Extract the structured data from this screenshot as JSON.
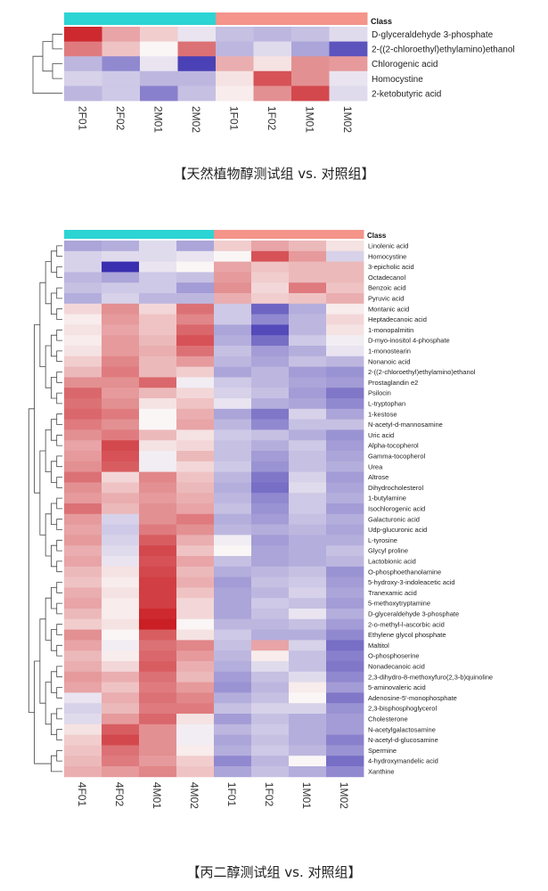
{
  "colors": {
    "class_treatment": "#2DD4D4",
    "class_control": "#F4948A",
    "low": "#3A2FB0",
    "mid": "#FAF6F6",
    "high": "#C8151B"
  },
  "chart_data": [
    {
      "type": "heatmap",
      "class_label": "Class",
      "columns": [
        "2F01",
        "2F02",
        "2M01",
        "2M02",
        "1F01",
        "1F02",
        "1M01",
        "1M02"
      ],
      "rows": [
        "D-glyceraldehyde 3-phosphate",
        "2-((2-chloroethyl)ethylamino)ethanol",
        "Chlorogenic acid",
        "Homocystine",
        "2-ketobutyric acid"
      ],
      "values": [
        [
          2.0,
          0.8,
          0.4,
          -0.2,
          -0.6,
          -0.7,
          -0.6,
          -0.3
        ],
        [
          1.2,
          0.5,
          0.0,
          1.3,
          -0.7,
          -0.3,
          -0.9,
          -1.8
        ],
        [
          -0.7,
          -1.2,
          -0.2,
          -2.0,
          0.7,
          0.2,
          1.0,
          0.9
        ],
        [
          -0.4,
          -0.5,
          -0.7,
          -0.7,
          0.2,
          1.6,
          1.0,
          -0.2
        ],
        [
          -0.7,
          -0.5,
          -1.3,
          -0.6,
          0.1,
          1.0,
          1.7,
          -0.3
        ]
      ],
      "caption": "【天然植物醇测试组 vs. 对照组】"
    },
    {
      "type": "heatmap",
      "class_label": "Class",
      "columns": [
        "4F01",
        "4F02",
        "4M01",
        "4M02",
        "1F01",
        "1F02",
        "1M01",
        "1M02"
      ],
      "rows": [
        "Linolenic acid",
        "Homocystine",
        "3-epicholic acid",
        "Octadecanol",
        "Benzoic acid",
        "Pyruvic acid",
        "Montanic acid",
        "Heptadecanoic acid",
        "1-monopalmitin",
        "D-myo-inositol 4-phosphate",
        "1-monostearin",
        "Nonanoic acid",
        "2-((2-chloroethyl)ethylamino)ethanol",
        "Prostaglandin e2",
        "Psilocin",
        "L-tryptophan",
        "1-kestose",
        "N-acetyl-d-mannosamine",
        "Uric acid",
        "Alpha-tocopherol",
        "Gamma-tocopherol",
        "Urea",
        "Altrose",
        "Dihydrocholesterol",
        "1-butylamine",
        "Isochlorogenic acid",
        "Galacturonic acid",
        "Udp-glucuronic acid",
        "L-tyrosine",
        "Glycyl proline",
        "Lactobionic acid",
        "O-phosphoethanolamine",
        "5-hydroxy-3-indoleacetic acid",
        "Tranexamic acid",
        "5-methoxytryptamine",
        "D-glyceraldehyde 3-phosphate",
        "2-o-methyl-l-ascorbic acid",
        "Ethylene glycol phosphate",
        "Maltitol",
        "O-phosphoserine",
        "Nonadecanoic acid",
        "2,3-dihydro-8-methoxyfuro(2,3-b)quinoline",
        "5-aminovaleric acid",
        "Adenosine-5'-monophosphate",
        "2,3-bisphosphoglycerol",
        "Cholesterone",
        "N-acetylgalactosamine",
        "N-acetyl-d-glucosamine",
        "Spermine",
        "4-hydroxymandelic acid",
        "Xanthine"
      ],
      "values": [
        [
          -0.9,
          -0.8,
          -0.3,
          -0.9,
          0.4,
          0.8,
          0.6,
          0.2
        ],
        [
          -0.4,
          -0.3,
          -0.3,
          -0.2,
          0.0,
          1.6,
          0.9,
          -0.4
        ],
        [
          -0.4,
          -2.6,
          -0.2,
          0.0,
          0.8,
          0.5,
          0.6,
          0.6
        ],
        [
          -0.7,
          -0.9,
          -0.5,
          -0.6,
          0.9,
          0.4,
          0.6,
          0.6
        ],
        [
          -0.6,
          -0.5,
          -0.5,
          -1.0,
          1.0,
          0.3,
          1.2,
          0.5
        ],
        [
          -0.8,
          -0.4,
          -0.7,
          -0.7,
          0.7,
          0.4,
          0.5,
          0.7
        ],
        [
          0.3,
          1.0,
          0.3,
          1.3,
          -0.5,
          -1.6,
          -0.8,
          0.1
        ],
        [
          0.1,
          0.9,
          0.5,
          1.1,
          -0.5,
          -1.2,
          -0.7,
          0.3
        ],
        [
          0.2,
          0.8,
          0.5,
          1.4,
          -0.9,
          -1.9,
          -0.7,
          0.2
        ],
        [
          0.1,
          0.9,
          0.6,
          1.6,
          -0.8,
          -1.5,
          -0.5,
          -0.1
        ],
        [
          0.2,
          0.9,
          0.7,
          1.3,
          -0.6,
          -1.0,
          -0.8,
          -0.2
        ],
        [
          0.4,
          1.1,
          0.6,
          0.9,
          -0.7,
          -0.9,
          -0.6,
          -0.7
        ],
        [
          0.6,
          1.2,
          0.6,
          0.4,
          -0.9,
          -0.7,
          -1.0,
          -1.1
        ],
        [
          1.0,
          1.0,
          1.4,
          -0.1,
          -0.5,
          -0.7,
          -0.9,
          -1.0
        ],
        [
          1.4,
          0.9,
          0.6,
          0.3,
          -0.4,
          -0.6,
          -1.0,
          -1.4
        ],
        [
          1.3,
          1.0,
          0.2,
          0.5,
          -0.2,
          -0.8,
          -0.9,
          -1.2
        ],
        [
          1.4,
          1.2,
          0.0,
          0.7,
          -0.9,
          -1.4,
          -0.4,
          -0.9
        ],
        [
          1.2,
          1.0,
          0.0,
          0.8,
          -0.7,
          -1.2,
          -0.6,
          -0.6
        ],
        [
          1.0,
          1.2,
          0.6,
          0.2,
          -0.5,
          -0.6,
          -0.8,
          -1.1
        ],
        [
          0.8,
          1.7,
          0.2,
          0.3,
          -0.6,
          -0.8,
          -0.5,
          -1.0
        ],
        [
          0.9,
          1.6,
          -0.1,
          0.6,
          -0.6,
          -1.0,
          -0.6,
          -0.9
        ],
        [
          1.0,
          1.5,
          -0.1,
          0.3,
          -0.5,
          -1.1,
          -0.6,
          -0.8
        ],
        [
          1.3,
          0.3,
          1.1,
          0.5,
          -0.7,
          -1.4,
          -0.4,
          -1.0
        ],
        [
          1.0,
          0.5,
          1.0,
          0.6,
          -0.8,
          -1.5,
          -0.3,
          -0.9
        ],
        [
          0.9,
          0.7,
          0.9,
          0.7,
          -0.7,
          -1.2,
          -0.5,
          -0.8
        ],
        [
          1.3,
          0.6,
          1.0,
          0.8,
          -0.6,
          -1.1,
          -0.5,
          -1.0
        ],
        [
          0.9,
          -0.4,
          1.0,
          1.2,
          -0.8,
          -1.0,
          -0.6,
          -0.8
        ],
        [
          0.8,
          -0.5,
          1.2,
          1.0,
          -0.7,
          -0.8,
          -0.7,
          -0.9
        ],
        [
          0.9,
          -0.4,
          1.5,
          0.7,
          -0.1,
          -1.0,
          -0.8,
          -0.8
        ],
        [
          0.7,
          -0.3,
          1.7,
          0.5,
          0.0,
          -0.9,
          -0.8,
          -0.6
        ],
        [
          0.8,
          -0.2,
          1.6,
          0.8,
          -0.6,
          -0.9,
          -0.8,
          -0.7
        ],
        [
          0.6,
          0.2,
          1.7,
          0.6,
          -0.8,
          -0.7,
          -0.6,
          -1.1
        ],
        [
          0.5,
          0.1,
          1.8,
          0.7,
          -1.0,
          -0.6,
          -0.5,
          -1.0
        ],
        [
          0.7,
          0.2,
          1.8,
          0.5,
          -0.9,
          -0.7,
          -0.4,
          -0.9
        ],
        [
          0.8,
          0.1,
          1.8,
          0.3,
          -0.9,
          -0.5,
          -0.6,
          -1.0
        ],
        [
          0.6,
          0.1,
          2.0,
          0.3,
          -0.9,
          -0.6,
          -0.2,
          -0.8
        ],
        [
          0.4,
          0.2,
          2.1,
          0.0,
          -0.7,
          -0.7,
          -0.6,
          -1.0
        ],
        [
          1.0,
          0.0,
          1.5,
          0.2,
          -0.5,
          -0.8,
          -0.8,
          -1.2
        ],
        [
          0.8,
          -0.1,
          1.3,
          1.1,
          -0.6,
          0.8,
          -0.4,
          -1.5
        ],
        [
          0.6,
          0.1,
          1.4,
          0.9,
          -0.7,
          0.1,
          -0.6,
          -1.3
        ],
        [
          0.7,
          0.3,
          1.5,
          0.7,
          -0.8,
          -0.3,
          -0.6,
          -1.4
        ],
        [
          0.9,
          0.7,
          1.3,
          0.6,
          -1.0,
          -0.6,
          -0.3,
          -1.2
        ],
        [
          0.8,
          0.5,
          1.2,
          0.9,
          -1.1,
          -0.7,
          0.1,
          -1.0
        ],
        [
          -0.2,
          0.7,
          1.3,
          1.1,
          -0.8,
          -0.6,
          0.0,
          -1.4
        ],
        [
          -0.4,
          0.6,
          1.2,
          1.2,
          -0.6,
          -0.4,
          -0.4,
          -1.1
        ],
        [
          -0.3,
          0.9,
          1.4,
          0.2,
          -1.0,
          -0.6,
          -0.8,
          -1.0
        ],
        [
          0.2,
          1.5,
          1.0,
          -0.1,
          -0.7,
          -0.5,
          -0.8,
          -1.0
        ],
        [
          0.4,
          1.7,
          1.0,
          -0.1,
          -0.9,
          -0.6,
          -0.8,
          -1.3
        ],
        [
          0.5,
          1.3,
          1.0,
          0.1,
          -0.8,
          -0.5,
          -0.7,
          -1.1
        ],
        [
          0.6,
          1.2,
          0.9,
          0.4,
          -1.2,
          -0.7,
          0.0,
          -1.5
        ],
        [
          0.7,
          0.9,
          1.1,
          0.5,
          -0.9,
          -0.6,
          -0.8,
          -1.2
        ]
      ],
      "caption": "【丙二醇测试组 vs. 对照组】"
    }
  ]
}
